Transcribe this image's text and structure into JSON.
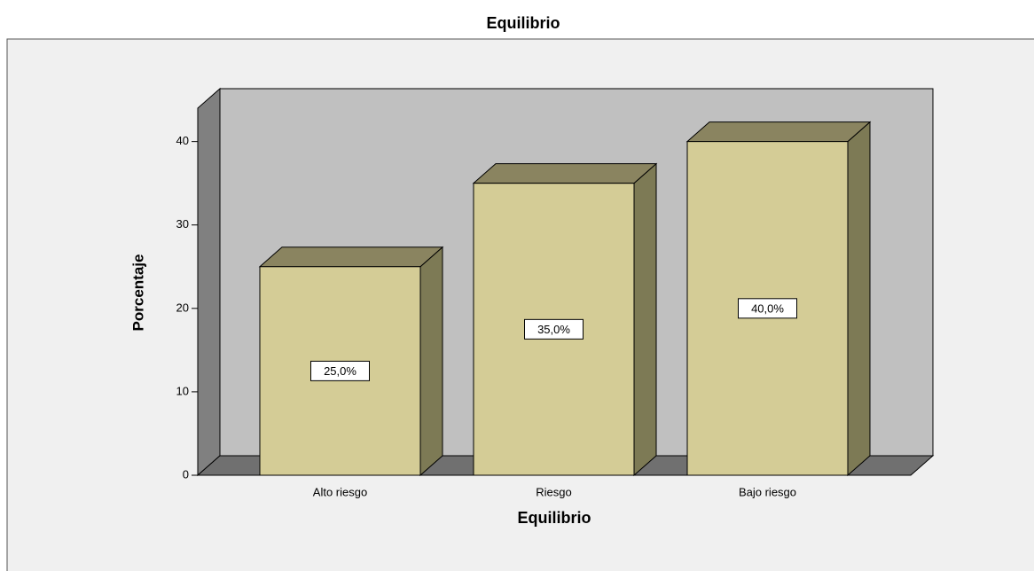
{
  "chart_data": {
    "type": "bar",
    "title": "Equilibrio",
    "x_label": "Equilibrio",
    "y_label": "Porcentaje",
    "categories": [
      "Alto riesgo",
      "Riesgo",
      "Bajo riesgo"
    ],
    "values": [
      25,
      35,
      40
    ],
    "value_labels": [
      "25,0%",
      "35,0%",
      "40,0%"
    ],
    "color": "#d4cc96",
    "ylim": [
      0,
      44
    ],
    "yticks": [
      0,
      10,
      20,
      30,
      40
    ]
  }
}
